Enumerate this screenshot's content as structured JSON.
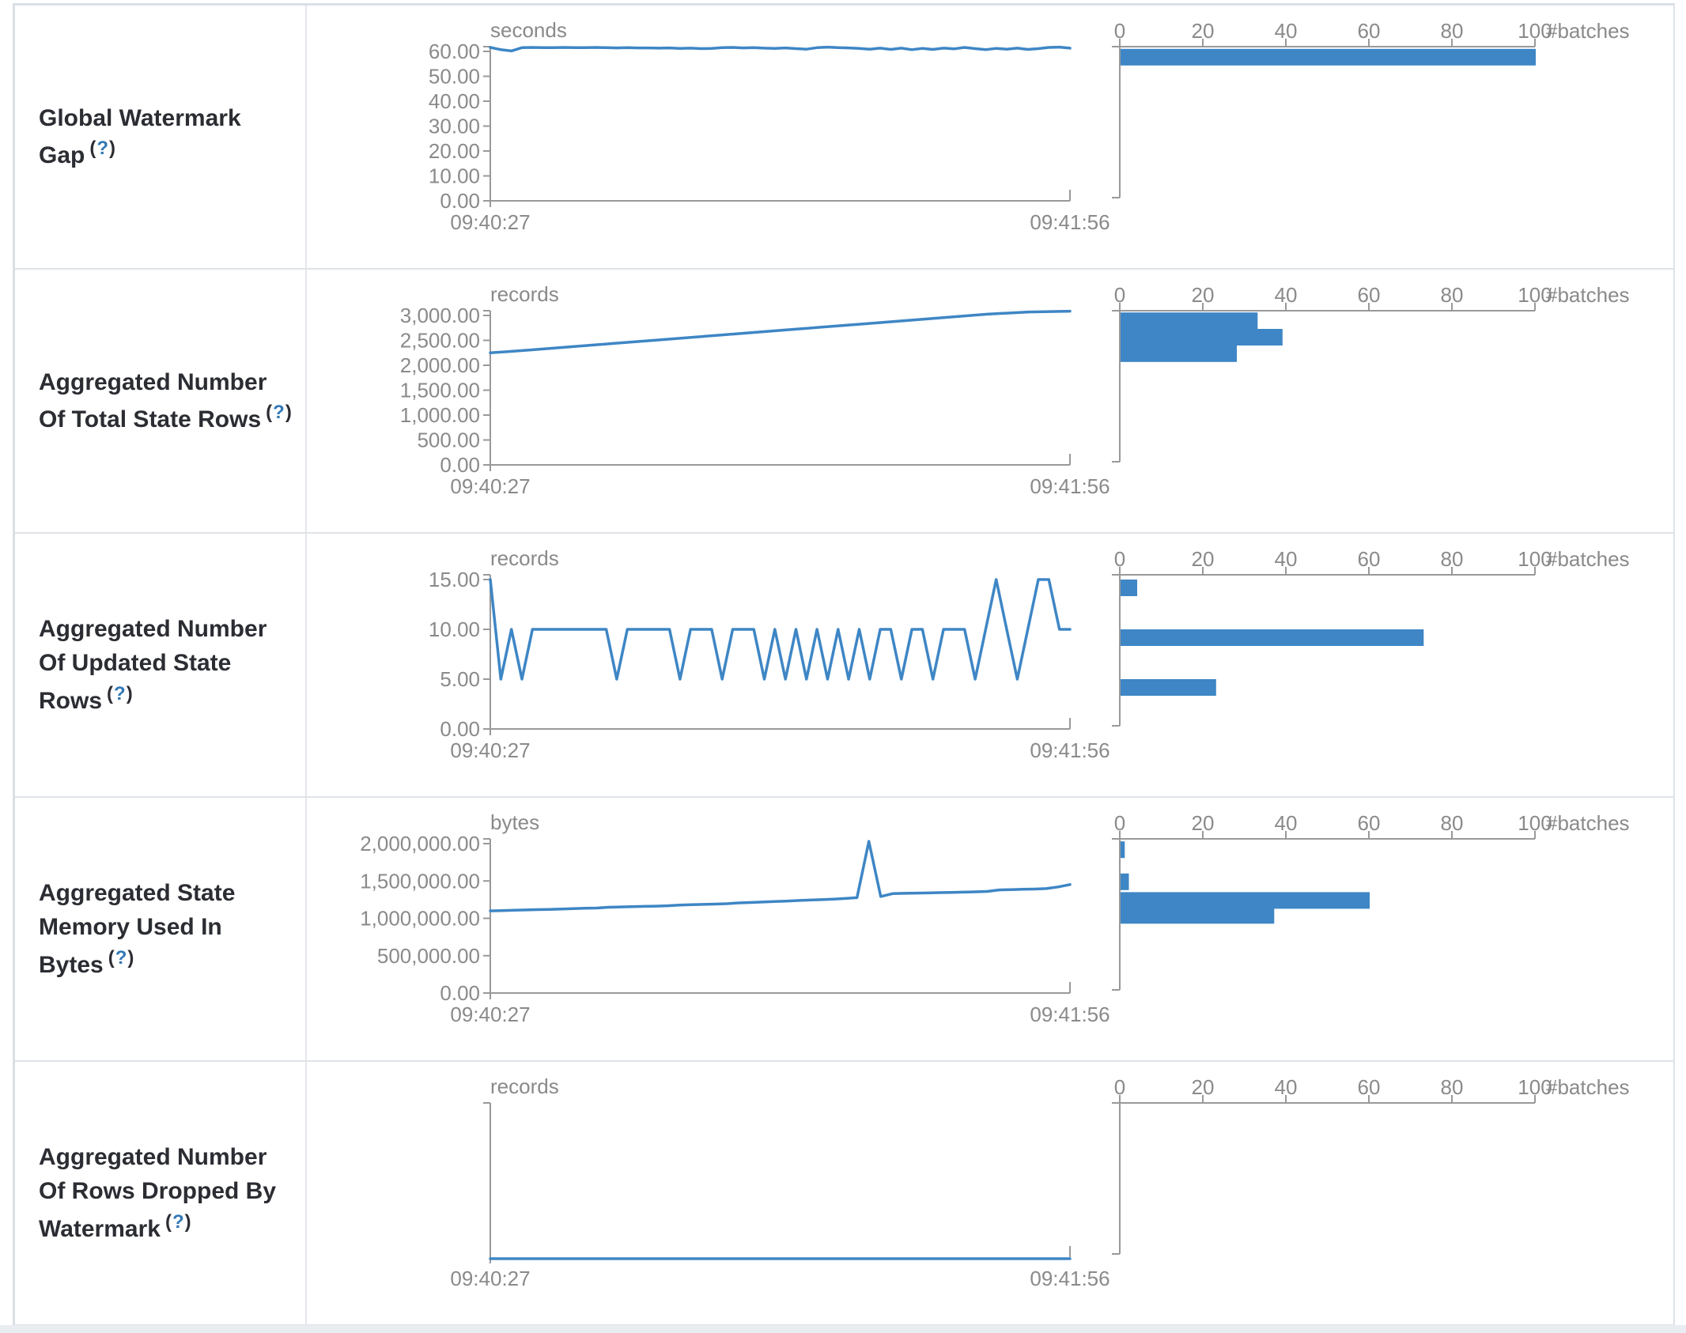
{
  "ui": {
    "help_open": "(",
    "help_mark": "?",
    "help_close": ")",
    "colors": {
      "accent_blue": "#3e86c5",
      "axis_line_gray": "#999999",
      "axis_text_gray": "#8a8a8a",
      "label_dark": "#2b2d33",
      "link_blue": "#3178b5",
      "table_border": "#dfe3e8",
      "page_strip": "#e9edf2"
    }
  },
  "chart_data": [
    {
      "label": "Global Watermark Gap",
      "timeline": {
        "type": "line",
        "unit": "seconds",
        "x_ticks": [
          "09:40:27",
          "09:41:56"
        ],
        "y_ticks": [
          {
            "v": 60,
            "label": "60.00"
          },
          {
            "v": 50,
            "label": "50.00"
          },
          {
            "v": 40,
            "label": "40.00"
          },
          {
            "v": 30,
            "label": "30.00"
          },
          {
            "v": 20,
            "label": "20.00"
          },
          {
            "v": 10,
            "label": "10.00"
          },
          {
            "v": 0,
            "label": "0.00"
          }
        ],
        "ylim": [
          0,
          63
        ],
        "values": [
          61.6,
          60.7,
          60.2,
          61.5,
          61.6,
          61.5,
          61.5,
          61.6,
          61.5,
          61.5,
          61.6,
          61.5,
          61.4,
          61.5,
          61.4,
          61.4,
          61.3,
          61.4,
          61.2,
          61.3,
          61.1,
          61.2,
          61.5,
          61.6,
          61.4,
          61.5,
          61.3,
          61.2,
          61.4,
          61.1,
          60.9,
          61.5,
          61.7,
          61.5,
          61.4,
          61.2,
          60.9,
          61.3,
          60.8,
          61.3,
          60.7,
          61.2,
          60.8,
          61.3,
          61.0,
          61.6,
          61.1,
          60.7,
          61.2,
          60.9,
          61.3,
          60.8,
          61.1,
          61.6,
          61.7,
          61.3
        ]
      },
      "histogram": {
        "type": "bar",
        "xlabel": "#batches",
        "x_ticks": [
          "0",
          "20",
          "40",
          "60",
          "80",
          "100"
        ],
        "xlim": [
          0,
          100
        ],
        "bars": [
          {
            "count": 100,
            "bin_level": 61
          }
        ]
      }
    },
    {
      "label": "Aggregated Number Of Total State Rows",
      "timeline": {
        "type": "line",
        "unit": "records",
        "x_ticks": [
          "09:40:27",
          "09:41:56"
        ],
        "y_ticks": [
          {
            "v": 3000,
            "label": "3,000.00"
          },
          {
            "v": 2500,
            "label": "2,500.00"
          },
          {
            "v": 2000,
            "label": "2,000.00"
          },
          {
            "v": 1500,
            "label": "1,500.00"
          },
          {
            "v": 1000,
            "label": "1,000.00"
          },
          {
            "v": 500,
            "label": "500.00"
          },
          {
            "v": 0,
            "label": "0.00"
          }
        ],
        "ylim": [
          0,
          3150
        ],
        "values": [
          2250,
          2310,
          2375,
          2440,
          2505,
          2570,
          2635,
          2700,
          2765,
          2830,
          2895,
          2960,
          3025,
          3070,
          3085
        ]
      },
      "histogram": {
        "type": "bar",
        "xlabel": "#batches",
        "x_ticks": [
          "0",
          "20",
          "40",
          "60",
          "80",
          "100"
        ],
        "xlim": [
          0,
          100
        ],
        "bars": [
          {
            "count": 33,
            "bin_level": 3060
          },
          {
            "count": 39,
            "bin_level": 2730
          },
          {
            "count": 28,
            "bin_level": 2400
          }
        ]
      }
    },
    {
      "label": "Aggregated Number Of Updated State Rows",
      "timeline": {
        "type": "line",
        "unit": "records",
        "x_ticks": [
          "09:40:27",
          "09:41:56"
        ],
        "y_ticks": [
          {
            "v": 15,
            "label": "15.00"
          },
          {
            "v": 10,
            "label": "10.00"
          },
          {
            "v": 5,
            "label": "5.00"
          },
          {
            "v": 0,
            "label": "0.00"
          }
        ],
        "ylim": [
          0,
          15.8
        ],
        "values": [
          15,
          5,
          10,
          5,
          10,
          10,
          10,
          10,
          10,
          10,
          10,
          10,
          5,
          10,
          10,
          10,
          10,
          10,
          5,
          10,
          10,
          10,
          5,
          10,
          10,
          10,
          5,
          10,
          5,
          10,
          5,
          10,
          5,
          10,
          5,
          10,
          5,
          10,
          10,
          5,
          10,
          10,
          5,
          10,
          10,
          10,
          5,
          10,
          15,
          10,
          5,
          10,
          15,
          15,
          10,
          10
        ]
      },
      "histogram": {
        "type": "bar",
        "xlabel": "#batches",
        "x_ticks": [
          "0",
          "20",
          "40",
          "60",
          "80",
          "100"
        ],
        "xlim": [
          0,
          100
        ],
        "bars": [
          {
            "count": 4,
            "bin_level": 15
          },
          {
            "count": 73,
            "bin_level": 10
          },
          {
            "count": 23,
            "bin_level": 5
          }
        ]
      }
    },
    {
      "label": "Aggregated State Memory Used In Bytes",
      "timeline": {
        "type": "line",
        "unit": "bytes",
        "x_ticks": [
          "09:40:27",
          "09:41:56"
        ],
        "y_ticks": [
          {
            "v": 2000000,
            "label": "2,000,000.00"
          },
          {
            "v": 1500000,
            "label": "1,500,000.00"
          },
          {
            "v": 1000000,
            "label": "1,000,000.00"
          },
          {
            "v": 500000,
            "label": "500,000.00"
          },
          {
            "v": 0,
            "label": "0.00"
          }
        ],
        "ylim": [
          0,
          2100000
        ],
        "values": [
          1100000,
          1103000,
          1108000,
          1112000,
          1116000,
          1120000,
          1124000,
          1130000,
          1134000,
          1138000,
          1148000,
          1152000,
          1156000,
          1160000,
          1163000,
          1168000,
          1178000,
          1182000,
          1186000,
          1190000,
          1196000,
          1206000,
          1212000,
          1218000,
          1224000,
          1230000,
          1238000,
          1244000,
          1250000,
          1256000,
          1266000,
          1276000,
          2030000,
          1292000,
          1330000,
          1334000,
          1338000,
          1340000,
          1344000,
          1346000,
          1350000,
          1354000,
          1360000,
          1380000,
          1384000,
          1388000,
          1392000,
          1398000,
          1420000,
          1452000
        ]
      },
      "histogram": {
        "type": "bar",
        "xlabel": "#batches",
        "x_ticks": [
          "0",
          "20",
          "40",
          "60",
          "80",
          "100"
        ],
        "xlim": [
          0,
          100
        ],
        "bars": [
          {
            "count": 1,
            "bin_level": 2030000
          },
          {
            "count": 2,
            "bin_level": 1600000
          },
          {
            "count": 60,
            "bin_level": 1350000
          },
          {
            "count": 37,
            "bin_level": 1150000
          }
        ]
      }
    },
    {
      "label": "Aggregated Number Of Rows Dropped By Watermark",
      "timeline": {
        "type": "line",
        "unit": "records",
        "x_ticks": [
          "09:40:27",
          "09:41:56"
        ],
        "y_ticks": [],
        "ylim": [
          0,
          1
        ],
        "values": [
          0,
          0
        ]
      },
      "histogram": {
        "type": "bar",
        "xlabel": "#batches",
        "x_ticks": [
          "0",
          "20",
          "40",
          "60",
          "80",
          "100"
        ],
        "xlim": [
          0,
          100
        ],
        "bars": []
      }
    }
  ]
}
